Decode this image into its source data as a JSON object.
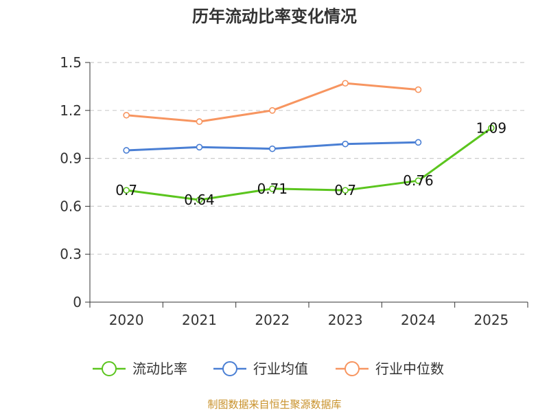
{
  "chart_data": {
    "type": "line",
    "title": "历年流动比率变化情况",
    "categories": [
      "2020",
      "2021",
      "2022",
      "2023",
      "2024",
      "2025"
    ],
    "ylim": [
      0,
      1.5
    ],
    "yticks": [
      "0",
      "0.3",
      "0.6",
      "0.9",
      "1.2",
      "1.5"
    ],
    "ytick_values": [
      0,
      0.3,
      0.6,
      0.9,
      1.2,
      1.5
    ],
    "grid": true,
    "legend_position": "bottom",
    "series": [
      {
        "name": "流动比率",
        "color": "#5bc51e",
        "values": [
          0.7,
          0.64,
          0.71,
          0.7,
          0.76,
          1.09
        ],
        "labels": [
          "0.7",
          "0.64",
          "0.71",
          "0.7",
          "0.76",
          "1.09"
        ]
      },
      {
        "name": "行业均值",
        "color": "#4a7fd4",
        "values": [
          0.95,
          0.97,
          0.96,
          0.99,
          1.0,
          null
        ]
      },
      {
        "name": "行业中位数",
        "color": "#f79560",
        "values": [
          1.17,
          1.13,
          1.2,
          1.37,
          1.33,
          null
        ]
      }
    ],
    "source": "制图数据来自恒生聚源数据库"
  }
}
